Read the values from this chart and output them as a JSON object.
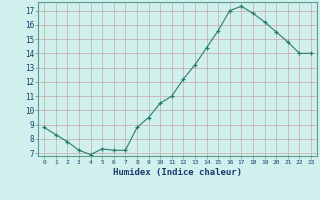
{
  "x": [
    0,
    1,
    2,
    3,
    4,
    5,
    6,
    7,
    8,
    9,
    10,
    11,
    12,
    13,
    14,
    15,
    16,
    17,
    18,
    19,
    20,
    21,
    22,
    23
  ],
  "y": [
    8.8,
    8.3,
    7.8,
    7.2,
    6.9,
    7.3,
    7.2,
    7.2,
    8.8,
    9.5,
    10.5,
    11.0,
    12.2,
    13.2,
    14.4,
    15.6,
    17.0,
    17.3,
    16.8,
    16.2,
    15.5,
    14.8,
    14.0,
    14.0
  ],
  "xlabel": "Humidex (Indice chaleur)",
  "ylim": [
    6.8,
    17.6
  ],
  "yticks": [
    7,
    8,
    9,
    10,
    11,
    12,
    13,
    14,
    15,
    16,
    17
  ],
  "xlim": [
    -0.5,
    23.5
  ],
  "line_color": "#2a7d6a",
  "marker": "+",
  "bg_color": "#cff0ec",
  "grid_color_major": "#c8a8a8",
  "grid_color_minor": "#ddc8c8",
  "xlabel_color": "#1a3a6e",
  "tick_label_color": "#1a3a6e",
  "figsize": [
    3.2,
    2.0
  ],
  "dpi": 100
}
